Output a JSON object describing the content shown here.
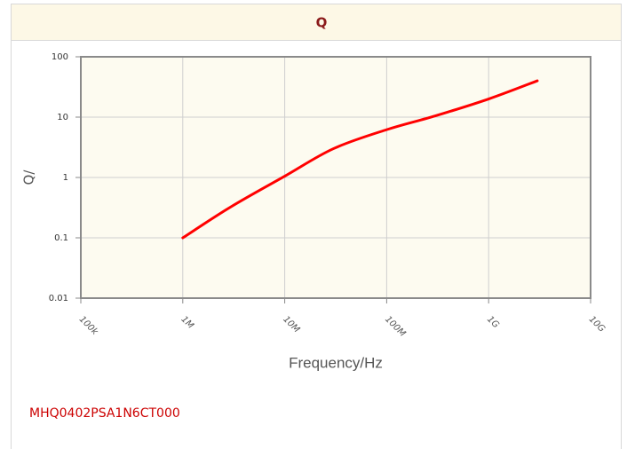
{
  "chart_data": {
    "type": "line",
    "title": "Q",
    "subtitle": "MHQ0402PSA1N6CT000",
    "x_label": "Frequency/Hz",
    "y_label": "Q/",
    "x": [
      1000000,
      3000000,
      10000000,
      30000000,
      100000000,
      300000000,
      1000000000,
      3000000000
    ],
    "series": [
      {
        "name": "Q",
        "color": "#ff0000",
        "values": [
          0.1,
          0.33,
          1.05,
          3.0,
          6.2,
          10.5,
          20,
          40
        ]
      }
    ],
    "xlim": [
      100000,
      10000000000
    ],
    "xticks": [
      {
        "value": 100000,
        "label": "100k"
      },
      {
        "value": 1000000,
        "label": "1M"
      },
      {
        "value": 10000000,
        "label": "10M"
      },
      {
        "value": 100000000,
        "label": "100M"
      },
      {
        "value": 1000000000,
        "label": "1G"
      },
      {
        "value": 10000000000,
        "label": "10G"
      }
    ],
    "ylim": [
      0.01,
      100
    ],
    "yticks": [
      0.01,
      0.1,
      1,
      10,
      100
    ],
    "xlog": true,
    "ylog": true,
    "grid": true
  }
}
